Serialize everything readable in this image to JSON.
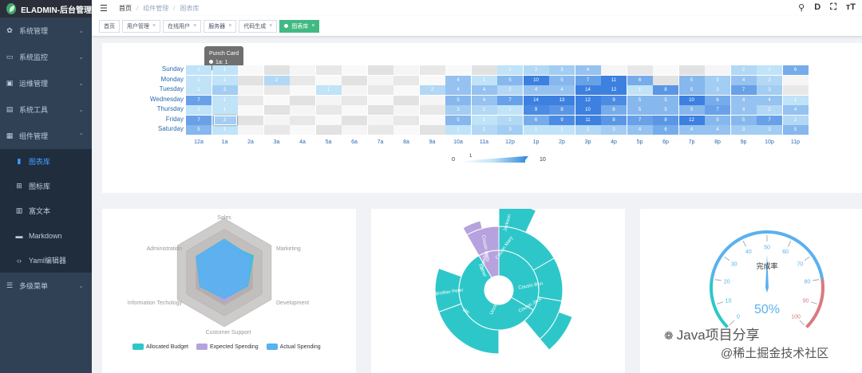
{
  "app": {
    "title": "ELADMIN-后台管理"
  },
  "sidebar": {
    "items": [
      {
        "label": "系统管理",
        "icon": "gear-icon",
        "glyph": "✿",
        "expanded": false
      },
      {
        "label": "系统监控",
        "icon": "monitor-icon",
        "glyph": "▭",
        "expanded": false
      },
      {
        "label": "运维管理",
        "icon": "terminal-icon",
        "glyph": "▣",
        "expanded": false
      },
      {
        "label": "系统工具",
        "icon": "tools-icon",
        "glyph": "▤",
        "expanded": false
      },
      {
        "label": "组件管理",
        "icon": "component-icon",
        "glyph": "▦",
        "expanded": true
      },
      {
        "label": "多级菜单",
        "icon": "menu-icon",
        "glyph": "☰",
        "expanded": false
      }
    ],
    "subitems": [
      {
        "label": "图表库",
        "icon": "chart-icon",
        "glyph": "▮",
        "active": true
      },
      {
        "label": "图标库",
        "icon": "icons-icon",
        "glyph": "⊞",
        "active": false
      },
      {
        "label": "富文本",
        "icon": "richtext-icon",
        "glyph": "▥",
        "active": false
      },
      {
        "label": "Markdown",
        "icon": "markdown-icon",
        "glyph": "▬",
        "active": false
      },
      {
        "label": "Yaml编辑器",
        "icon": "code-icon",
        "glyph": "‹›",
        "active": false
      }
    ]
  },
  "breadcrumb": [
    "首页",
    "组件管理",
    "图表库"
  ],
  "header_icons": [
    {
      "name": "search-icon",
      "glyph": "⚲"
    },
    {
      "name": "doc-icon",
      "glyph": "D"
    },
    {
      "name": "fullscreen-icon",
      "glyph": "⛶"
    },
    {
      "name": "font-size-icon",
      "glyph": "тT"
    }
  ],
  "tags": [
    {
      "label": "首页",
      "closable": false,
      "active": false
    },
    {
      "label": "用户管理",
      "closable": true,
      "active": false
    },
    {
      "label": "在线用户",
      "closable": true,
      "active": false
    },
    {
      "label": "服务器",
      "closable": true,
      "active": false
    },
    {
      "label": "代码生成",
      "closable": true,
      "active": false
    },
    {
      "label": "图表库",
      "closable": true,
      "active": true
    }
  ],
  "chart_data": [
    {
      "type": "heatmap",
      "title": "",
      "days": [
        "Saturday",
        "Friday",
        "Thursday",
        "Wednesday",
        "Tuesday",
        "Monday",
        "Sunday"
      ],
      "hours": [
        "12a",
        "1a",
        "2a",
        "3a",
        "4a",
        "5a",
        "6a",
        "7a",
        "8a",
        "9a",
        "10a",
        "11a",
        "12p",
        "1p",
        "2p",
        "3p",
        "4p",
        "5p",
        "6p",
        "7p",
        "8p",
        "9p",
        "10p",
        "11p"
      ],
      "values": [
        [
          5,
          1,
          0,
          0,
          0,
          0,
          0,
          0,
          0,
          0,
          1,
          2,
          3,
          1,
          1,
          2,
          3,
          4,
          6,
          4,
          4,
          3,
          3,
          5
        ],
        [
          7,
          3,
          0,
          0,
          0,
          0,
          0,
          0,
          0,
          0,
          5,
          1,
          2,
          6,
          9,
          11,
          8,
          7,
          8,
          12,
          5,
          5,
          7,
          2
        ],
        [
          1,
          1,
          0,
          0,
          0,
          0,
          0,
          0,
          0,
          0,
          3,
          2,
          1,
          9,
          8,
          10,
          6,
          5,
          5,
          5,
          7,
          4,
          2,
          4
        ],
        [
          7,
          1,
          0,
          0,
          0,
          0,
          0,
          0,
          0,
          0,
          5,
          4,
          7,
          14,
          13,
          12,
          9,
          5,
          5,
          10,
          6,
          4,
          4,
          1
        ],
        [
          1,
          3,
          0,
          0,
          0,
          1,
          0,
          0,
          0,
          2,
          4,
          4,
          2,
          4,
          4,
          14,
          12,
          1,
          8,
          5,
          3,
          7,
          3,
          0
        ],
        [
          1,
          1,
          0,
          2,
          0,
          0,
          0,
          0,
          0,
          0,
          4,
          1,
          5,
          10,
          5,
          7,
          11,
          6,
          0,
          5,
          3,
          4,
          2,
          0
        ],
        [
          1,
          1,
          0,
          0,
          0,
          0,
          0,
          0,
          0,
          0,
          0,
          0,
          1,
          2,
          3,
          4,
          0,
          0,
          0,
          0,
          0,
          2,
          1,
          6
        ]
      ],
      "visual_map": {
        "min": 0,
        "max": 10,
        "labels": [
          "0",
          "10"
        ],
        "handle_low": "1"
      },
      "tooltip": {
        "title": "Punch Card",
        "text": "1a: 1"
      }
    },
    {
      "type": "radar",
      "indicators": [
        "Sales",
        "Marketing",
        "Development",
        "Customer Support",
        "Information Techology",
        "Administration"
      ],
      "series": [
        {
          "name": "Allocated Budget",
          "color": "#2ec7c9",
          "values": [
            0.55,
            0.62,
            0.5,
            0.4,
            0.3,
            0.45
          ]
        },
        {
          "name": "Expected Spending",
          "color": "#b6a2de",
          "values": [
            0.5,
            0.5,
            0.45,
            0.55,
            0.45,
            0.4
          ]
        },
        {
          "name": "Actual Spending",
          "color": "#5ab1ef",
          "values": [
            0.62,
            0.58,
            0.5,
            0.48,
            0.52,
            0.6
          ]
        }
      ]
    },
    {
      "type": "sunburst",
      "labels": [
        "Uncle Leo",
        "Cousin Ben",
        "Cousin Jack",
        "Jackson",
        "Cousin Mary",
        "Grandpa",
        "Father",
        "Brother Peter",
        "Me",
        "Uncle Nike",
        "Cousin Betty"
      ]
    },
    {
      "type": "gauge",
      "title": "完成率",
      "value": 50,
      "display": "50%",
      "min": 0,
      "max": 100,
      "ticks": [
        "0",
        "10",
        "20",
        "30",
        "40",
        "50",
        "60",
        "70",
        "80",
        "90",
        "100"
      ]
    }
  ],
  "watermark": {
    "line1": "Java项目分享",
    "line2": "@稀土掘金技术社区"
  },
  "colors": {
    "sidebar": "#304156",
    "active": "#409eff",
    "tag_active": "#42b983"
  }
}
